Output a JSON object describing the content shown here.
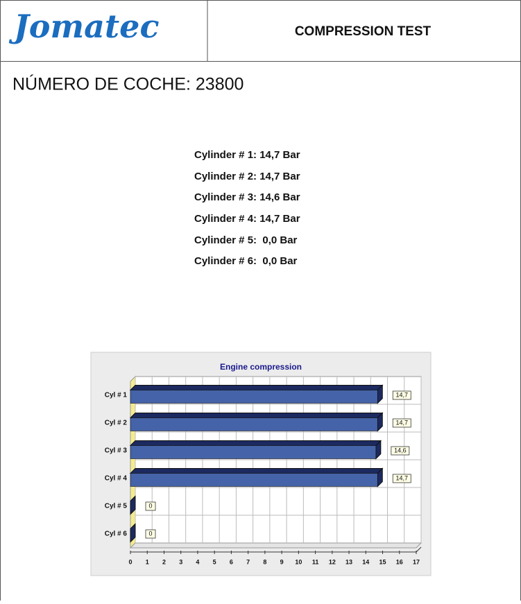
{
  "header": {
    "logo": "Jomatec",
    "title": "COMPRESSION TEST"
  },
  "car_number": "NÚMERO DE COCHE: 23800",
  "readings": [
    "Cylinder # 1: 14,7 Bar",
    "Cylinder # 2: 14,7 Bar",
    "Cylinder # 3: 14,6 Bar",
    "Cylinder # 4: 14,7 Bar",
    "Cylinder # 5:  0,0 Bar",
    "Cylinder # 6:  0,0 Bar"
  ],
  "chart_data": {
    "type": "hbar",
    "title": "Engine compression",
    "categories": [
      "Cyl # 1",
      "Cyl # 2",
      "Cyl # 3",
      "Cyl # 4",
      "Cyl # 5",
      "Cyl # 6"
    ],
    "values": [
      14.7,
      14.7,
      14.6,
      14.7,
      0,
      0
    ],
    "value_labels": [
      "14,7",
      "14,7",
      "14,6",
      "14,7",
      "0",
      "0"
    ],
    "color": "#4563a8",
    "xlim": [
      0,
      17
    ],
    "xticks": [
      0,
      1,
      2,
      3,
      4,
      5,
      6,
      7,
      8,
      9,
      10,
      11,
      12,
      13,
      14,
      15,
      16,
      17
    ],
    "grid": true
  }
}
